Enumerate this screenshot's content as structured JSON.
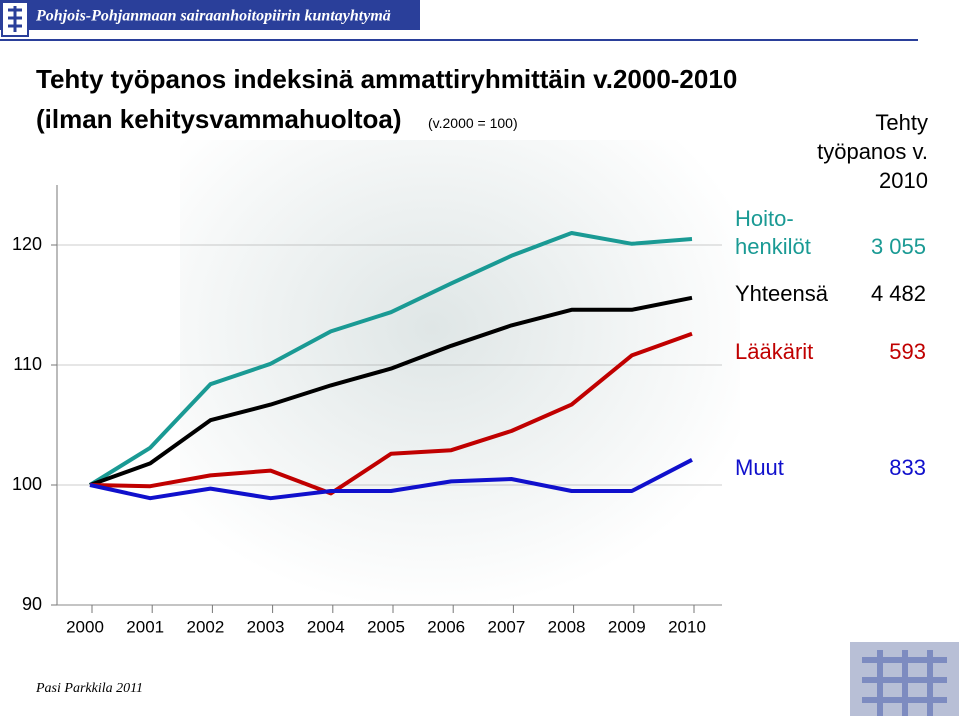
{
  "header": "Pohjois-Pohjanmaan sairaanhoitopiirin kuntayhtymä",
  "footer": "Pasi Parkkila 2011",
  "chart_data": {
    "type": "line",
    "title": "Tehty työpanos indeksinä ammattiryhmittäin v.2000-2010",
    "subtitle": "(ilman kehitysvammahuoltoa)",
    "note": "(v.2000 = 100)",
    "legend_header": "Tehty työpanos v. 2010",
    "categories": [
      "2000",
      "2001",
      "2002",
      "2003",
      "2004",
      "2005",
      "2006",
      "2007",
      "2008",
      "2009",
      "2010"
    ],
    "ylim": [
      90,
      125
    ],
    "yticks": [
      90,
      100,
      110,
      120
    ],
    "series": [
      {
        "name": "Hoito-henkilöt",
        "total": "3 055",
        "color": "#1a9a94",
        "values": [
          100,
          103.1,
          108.4,
          110.1,
          112.8,
          114.4,
          116.8,
          119.1,
          121.0,
          120.1,
          120.5
        ]
      },
      {
        "name": "Yhteensä",
        "total": "4 482",
        "color": "#000000",
        "values": [
          100,
          101.8,
          105.4,
          106.7,
          108.3,
          109.7,
          111.6,
          113.3,
          114.6,
          114.6,
          115.6
        ]
      },
      {
        "name": "Lääkärit",
        "total": "593",
        "color": "#c00000",
        "values": [
          100,
          99.9,
          100.8,
          101.2,
          99.3,
          102.6,
          102.9,
          104.5,
          106.7,
          110.8,
          112.6
        ]
      },
      {
        "name": "Muut",
        "total": "833",
        "color": "#1010cc",
        "values": [
          100,
          98.9,
          99.7,
          98.9,
          99.5,
          99.5,
          100.3,
          100.5,
          99.5,
          99.5,
          102.1
        ]
      }
    ]
  }
}
